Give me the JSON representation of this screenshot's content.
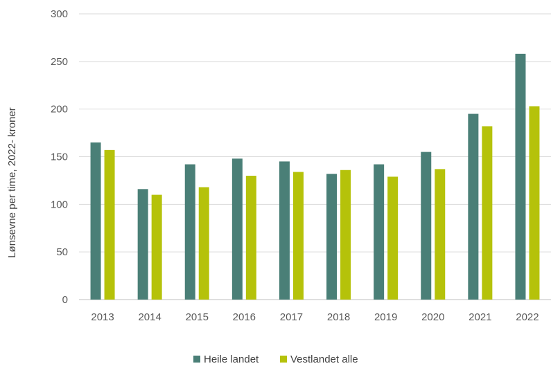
{
  "chart_data": {
    "type": "bar",
    "title": "",
    "xlabel": "",
    "ylabel": "Lønsevne per time, 2022- kroner",
    "categories": [
      "2013",
      "2014",
      "2015",
      "2016",
      "2017",
      "2018",
      "2019",
      "2020",
      "2021",
      "2022"
    ],
    "series": [
      {
        "name": "Heile landet",
        "color": "#4a7f77",
        "values": [
          165,
          116,
          142,
          148,
          145,
          132,
          142,
          155,
          195,
          258
        ]
      },
      {
        "name": "Vestlandet alle",
        "color": "#b5c20a",
        "values": [
          157,
          110,
          118,
          130,
          134,
          136,
          129,
          137,
          182,
          203
        ]
      }
    ],
    "ylim": [
      0,
      300
    ],
    "yticks": [
      0,
      50,
      100,
      150,
      200,
      250,
      300
    ],
    "grid": true,
    "legend_position": "bottom-center"
  }
}
